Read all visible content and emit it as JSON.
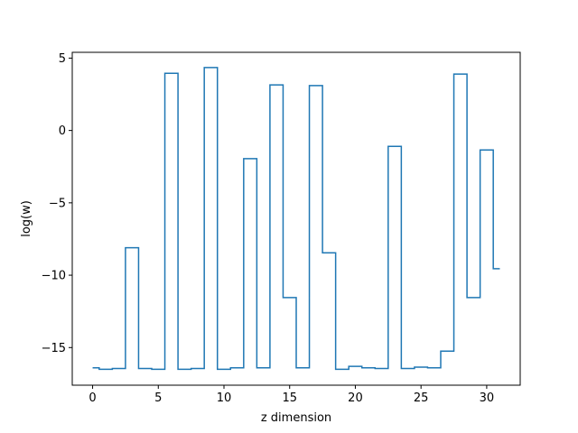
{
  "chart_data": {
    "type": "line",
    "drawstyle": "steps-mid",
    "title": "",
    "xlabel": "z dimension",
    "ylabel": "log(w)",
    "xlim": [
      -1.55,
      32.55
    ],
    "ylim": [
      -17.6,
      5.4
    ],
    "xticks": [
      0,
      5,
      10,
      15,
      20,
      25,
      30
    ],
    "yticks": [
      -15,
      -10,
      -5,
      0,
      5
    ],
    "grid": false,
    "legend": "none",
    "color": "#1f77b4",
    "series": [
      {
        "x": [
          0,
          1,
          2,
          3,
          4,
          5,
          6,
          7,
          8,
          9,
          10,
          11,
          12,
          13,
          14,
          15,
          16,
          17,
          18,
          19,
          20,
          21,
          22,
          23,
          24,
          25,
          26,
          27,
          28,
          29,
          30,
          31
        ],
        "values": [
          -16.4,
          -16.5,
          -16.45,
          -8.1,
          -16.45,
          -16.5,
          3.95,
          -16.5,
          -16.45,
          4.35,
          -16.5,
          -16.4,
          -1.95,
          -16.4,
          3.15,
          -11.55,
          -16.4,
          3.1,
          -8.45,
          -16.5,
          -16.3,
          -16.4,
          -16.45,
          -1.1,
          -16.45,
          -16.35,
          -16.4,
          -15.25,
          3.9,
          -11.55,
          -1.35,
          -9.55
        ]
      }
    ]
  }
}
